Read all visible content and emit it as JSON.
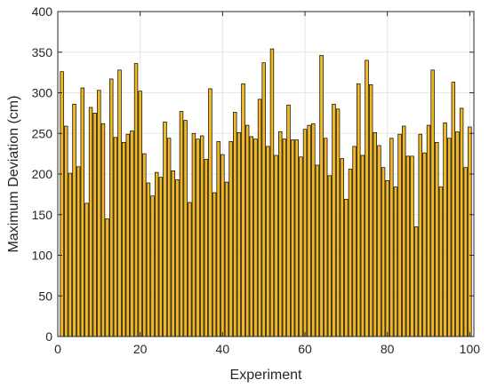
{
  "chart_data": {
    "type": "bar",
    "xlabel": "Experiment",
    "ylabel": "Maximum Deviation (cm)",
    "xlim": [
      0,
      101
    ],
    "ylim": [
      0,
      400
    ],
    "xticks": [
      0,
      20,
      40,
      60,
      80,
      100
    ],
    "yticks": [
      0,
      50,
      100,
      150,
      200,
      250,
      300,
      350,
      400
    ],
    "grid": true,
    "bar_color": "#f2b824",
    "edge_color": "#000000",
    "x": [
      1,
      2,
      3,
      4,
      5,
      6,
      7,
      8,
      9,
      10,
      11,
      12,
      13,
      14,
      15,
      16,
      17,
      18,
      19,
      20,
      21,
      22,
      23,
      24,
      25,
      26,
      27,
      28,
      29,
      30,
      31,
      32,
      33,
      34,
      35,
      36,
      37,
      38,
      39,
      40,
      41,
      42,
      43,
      44,
      45,
      46,
      47,
      48,
      49,
      50,
      51,
      52,
      53,
      54,
      55,
      56,
      57,
      58,
      59,
      60,
      61,
      62,
      63,
      64,
      65,
      66,
      67,
      68,
      69,
      70,
      71,
      72,
      73,
      74,
      75,
      76,
      77,
      78,
      79,
      80,
      81,
      82,
      83,
      84,
      85,
      86,
      87,
      88,
      89,
      90,
      91,
      92,
      93,
      94,
      95,
      96,
      97,
      98,
      99,
      100
    ],
    "values": [
      326,
      259,
      201,
      286,
      209,
      306,
      164,
      282,
      275,
      303,
      262,
      145,
      317,
      245,
      328,
      239,
      249,
      253,
      336,
      302,
      225,
      189,
      173,
      202,
      196,
      264,
      244,
      204,
      193,
      277,
      266,
      165,
      250,
      243,
      247,
      218,
      305,
      177,
      240,
      224,
      190,
      240,
      276,
      251,
      311,
      260,
      246,
      243,
      292,
      337,
      234,
      354,
      223,
      252,
      243,
      285,
      242,
      242,
      221,
      255,
      260,
      262,
      211,
      346,
      244,
      198,
      286,
      280,
      219,
      169,
      206,
      234,
      311,
      223,
      340,
      310,
      251,
      235,
      208,
      192,
      244,
      184,
      249,
      259,
      222,
      222,
      135,
      249,
      226,
      260,
      328,
      239,
      184,
      263,
      244,
      313,
      252,
      281,
      208,
      258
    ]
  }
}
